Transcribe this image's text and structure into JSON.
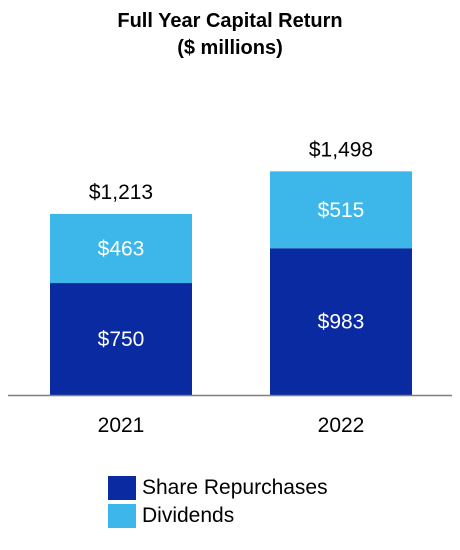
{
  "chart_data": {
    "type": "bar",
    "stacked": true,
    "title": "Full Year Capital Return",
    "subtitle": "($ millions)",
    "categories": [
      "2021",
      "2022"
    ],
    "series": [
      {
        "name": "Share Repurchases",
        "values": [
          750,
          983
        ],
        "labels": [
          "$750",
          "$983"
        ],
        "color": "#0a2aa2"
      },
      {
        "name": "Dividends",
        "values": [
          463,
          515
        ],
        "labels": [
          "$463",
          "$515"
        ],
        "color": "#3db7e9"
      }
    ],
    "totals": [
      "$1,213",
      "$1,498"
    ],
    "legend_position": "bottom",
    "grid": false
  }
}
